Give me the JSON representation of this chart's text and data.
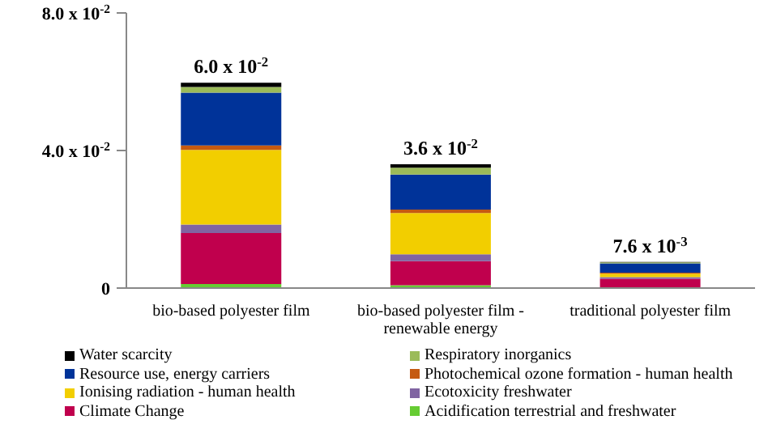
{
  "chart_data": {
    "type": "bar",
    "stacked": true,
    "categories": [
      "bio-based polyester film",
      "bio-based polyester film - renewable energy",
      "traditional polyester film"
    ],
    "series": [
      {
        "name": "Acidification terrestrial and freshwater",
        "color": "#66cc33",
        "values": [
          0.0012,
          0.0008,
          0.0002
        ]
      },
      {
        "name": "Climate Change",
        "color": "#c0004d",
        "values": [
          0.0148,
          0.007,
          0.0025
        ]
      },
      {
        "name": "Ecotoxicity freshwater",
        "color": "#8064a2",
        "values": [
          0.0025,
          0.002,
          0.0005
        ]
      },
      {
        "name": "Ionising radiation - human health",
        "color": "#f2ce00",
        "values": [
          0.0217,
          0.012,
          0.001
        ]
      },
      {
        "name": "Photochemical ozone formation - human health",
        "color": "#c55a11",
        "values": [
          0.0013,
          0.001,
          0.0003
        ]
      },
      {
        "name": "Resource use, energy carriers",
        "color": "#003399",
        "values": [
          0.0153,
          0.0102,
          0.0027
        ]
      },
      {
        "name": "Respiratory inorganics",
        "color": "#9bbb59",
        "values": [
          0.0017,
          0.002,
          0.0003
        ]
      },
      {
        "name": "Water scarcity",
        "color": "#000000",
        "values": [
          0.0012,
          0.001,
          0.0001
        ]
      }
    ],
    "totals": [
      "6.0 x 10$^{-2}$",
      "3.6 x 10$^{-2}$",
      "7.6 x 10$^{-3}$"
    ],
    "ylim": [
      0,
      0.08
    ],
    "yticks": [
      {
        "value": 0,
        "label": "0"
      },
      {
        "value": 0.04,
        "label": "4.0 x 10$^{-2}$"
      },
      {
        "value": 0.08,
        "label": "8.0 x 10$^{-2}$"
      }
    ],
    "legend": "bottom"
  }
}
